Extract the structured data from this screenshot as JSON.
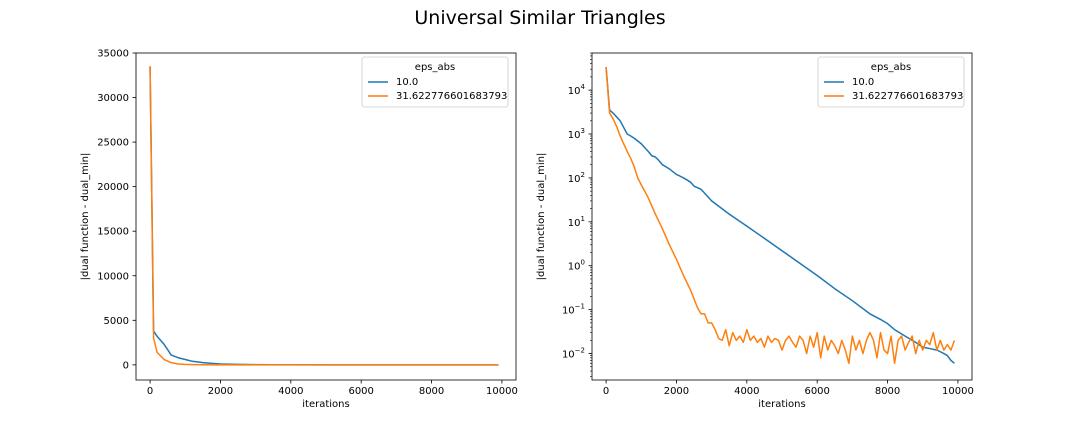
{
  "figure": {
    "title": "Universal Similar Triangles"
  },
  "chart_data": [
    {
      "type": "line",
      "xlabel": "iterations",
      "ylabel": "|dual function - dual_min|",
      "yscale": "linear",
      "xlim": [
        -400,
        10400
      ],
      "ylim": [
        -1700,
        35000
      ],
      "xticks": [
        0,
        2000,
        4000,
        6000,
        8000,
        10000
      ],
      "xtick_labels": [
        "0",
        "2000",
        "4000",
        "6000",
        "8000",
        "10000"
      ],
      "yticks": [
        0,
        5000,
        10000,
        15000,
        20000,
        25000,
        30000,
        35000
      ],
      "ytick_labels": [
        "0",
        "5000",
        "10000",
        "15000",
        "20000",
        "25000",
        "30000",
        "35000"
      ],
      "legend": {
        "title": "eps_abs",
        "position": "upper right"
      },
      "series": [
        {
          "name": "10.0",
          "color": "#1f77b4",
          "x": [
            0,
            100,
            200,
            400,
            600,
            800,
            1000,
            1200,
            1500,
            1800,
            2000,
            2500,
            3000,
            3500,
            4000,
            5000,
            6000,
            7000,
            8000,
            9000,
            9900
          ],
          "y": [
            33500,
            3800,
            3200,
            2300,
            1100,
            800,
            600,
            400,
            250,
            150,
            100,
            50,
            25,
            15,
            10,
            4,
            1.5,
            0.5,
            0.1,
            0.02,
            0.006
          ]
        },
        {
          "name": "31.622776601683793",
          "color": "#ff7f0e",
          "x": [
            0,
            100,
            200,
            400,
            600,
            800,
            1000,
            1200,
            1500,
            1800,
            2000,
            2500,
            3000,
            4000,
            6000,
            8000,
            9900
          ],
          "y": [
            33500,
            3000,
            1400,
            600,
            250,
            100,
            50,
            25,
            10,
            4,
            2,
            0.3,
            0.05,
            0.03,
            0.02,
            0.02,
            0.02
          ]
        }
      ]
    },
    {
      "type": "line",
      "xlabel": "iterations",
      "ylabel": "|dual function - dual_min|",
      "yscale": "log",
      "xlim": [
        -400,
        10400
      ],
      "ylim": [
        0.0025,
        70000
      ],
      "xticks": [
        0,
        2000,
        4000,
        6000,
        8000,
        10000
      ],
      "xtick_labels": [
        "0",
        "2000",
        "4000",
        "6000",
        "8000",
        "10000"
      ],
      "ytick_exponents": [
        -2,
        -1,
        0,
        1,
        2,
        3,
        4
      ],
      "legend": {
        "title": "eps_abs",
        "position": "upper right"
      },
      "series": [
        {
          "name": "10.0",
          "color": "#1f77b4",
          "x": [
            0,
            100,
            200,
            400,
            600,
            700,
            800,
            1000,
            1200,
            1300,
            1400,
            1500,
            1600,
            1700,
            1800,
            2000,
            2100,
            2200,
            2300,
            2400,
            2500,
            2600,
            2700,
            2800,
            3000,
            3500,
            4000,
            4500,
            5000,
            5500,
            6000,
            6500,
            7000,
            7500,
            7800,
            8000,
            8200,
            8500,
            8800,
            9000,
            9200,
            9400,
            9500,
            9600,
            9700,
            9800,
            9900
          ],
          "y": [
            33500,
            3500,
            3000,
            2000,
            1000,
            900,
            800,
            600,
            400,
            320,
            300,
            250,
            200,
            180,
            160,
            120,
            110,
            100,
            90,
            80,
            65,
            60,
            55,
            45,
            30,
            15,
            8,
            4.2,
            2.2,
            1.15,
            0.6,
            0.3,
            0.16,
            0.08,
            0.06,
            0.048,
            0.035,
            0.025,
            0.018,
            0.014,
            0.013,
            0.012,
            0.011,
            0.01,
            0.009,
            0.007,
            0.006
          ]
        },
        {
          "name": "31.622776601683793",
          "color": "#ff7f0e",
          "x": [
            0,
            100,
            200,
            300,
            400,
            500,
            600,
            700,
            800,
            900,
            1000,
            1200,
            1400,
            1600,
            1800,
            2000,
            2200,
            2400,
            2600,
            2700,
            2800,
            2900,
            3000,
            3100,
            3200,
            3300,
            3400,
            3500,
            3600,
            3700,
            3800,
            3900,
            4000,
            4100,
            4200,
            4300,
            4400,
            4500,
            4600,
            4700,
            4800,
            4900,
            5000,
            5100,
            5200,
            5300,
            5400,
            5500,
            5600,
            5700,
            5800,
            5900,
            6000,
            6100,
            6200,
            6300,
            6400,
            6500,
            6600,
            6700,
            6800,
            6900,
            7000,
            7100,
            7200,
            7300,
            7400,
            7500,
            7600,
            7700,
            7800,
            7900,
            8000,
            8100,
            8200,
            8300,
            8400,
            8500,
            8600,
            8700,
            8800,
            8900,
            9000,
            9100,
            9200,
            9300,
            9400,
            9500,
            9600,
            9700,
            9800,
            9900
          ],
          "y": [
            33500,
            3000,
            2200,
            1500,
            900,
            600,
            400,
            280,
            180,
            100,
            70,
            35,
            15,
            7,
            3,
            1.4,
            0.6,
            0.28,
            0.11,
            0.08,
            0.08,
            0.05,
            0.05,
            0.035,
            0.022,
            0.02,
            0.035,
            0.015,
            0.03,
            0.02,
            0.025,
            0.018,
            0.035,
            0.02,
            0.025,
            0.018,
            0.022,
            0.014,
            0.025,
            0.018,
            0.022,
            0.02,
            0.012,
            0.02,
            0.025,
            0.018,
            0.014,
            0.025,
            0.02,
            0.01,
            0.025,
            0.014,
            0.03,
            0.008,
            0.025,
            0.012,
            0.02,
            0.015,
            0.01,
            0.02,
            0.012,
            0.006,
            0.025,
            0.012,
            0.02,
            0.01,
            0.02,
            0.03,
            0.02,
            0.008,
            0.03,
            0.012,
            0.01,
            0.025,
            0.006,
            0.02,
            0.025,
            0.012,
            0.018,
            0.025,
            0.01,
            0.02,
            0.012,
            0.02,
            0.016,
            0.03,
            0.012,
            0.02,
            0.012,
            0.016,
            0.012,
            0.02
          ]
        }
      ]
    }
  ]
}
